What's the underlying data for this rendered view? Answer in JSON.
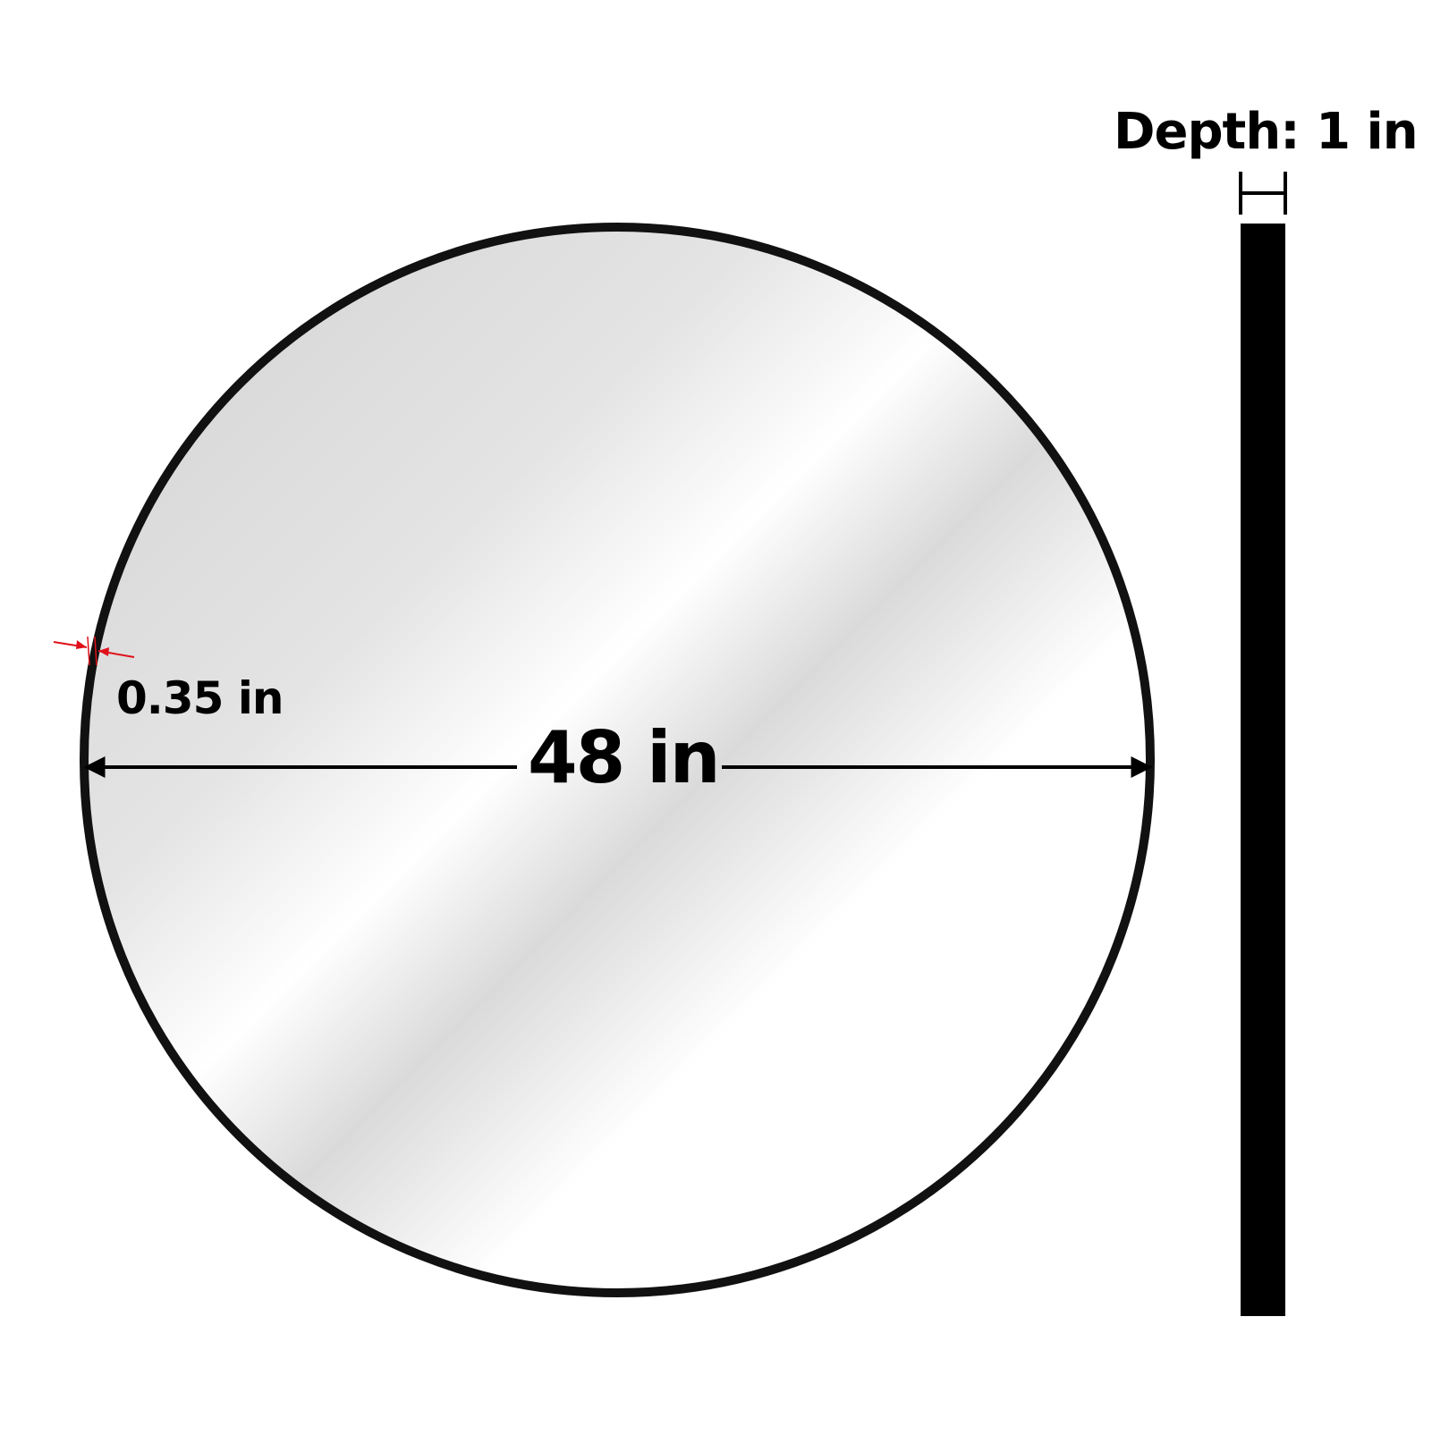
{
  "colors": {
    "frame": "#111111",
    "glass_light": "#ffffff",
    "glass_shade": "#d2d2d2",
    "dimension": "#000000",
    "frame_marker": "#e0101a"
  },
  "dimensions": {
    "diameter_label": "48 in",
    "frame_thickness_label": "0.35 in",
    "depth_label": "Depth: 1 in"
  }
}
